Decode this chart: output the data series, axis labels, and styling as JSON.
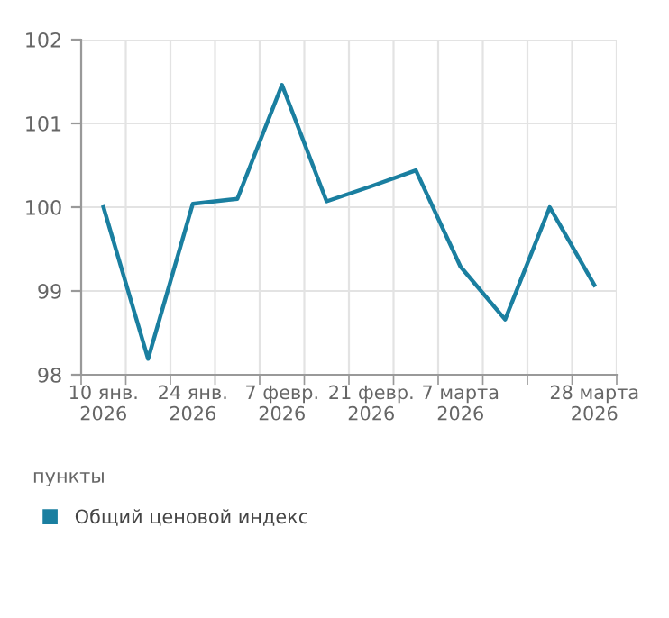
{
  "chart_data": {
    "type": "line",
    "categories": [
      "10 янв.\n2026",
      null,
      "24 янв.\n2026",
      null,
      "7 февр.\n2026",
      null,
      "21 февр.\n2026",
      null,
      "7 марта\n2026",
      null,
      null,
      "28 марта\n2026"
    ],
    "series": [
      {
        "name": "Общий ценовой индекс",
        "color": "#1a7fa0",
        "values": [
          100.0,
          98.19,
          100.04,
          100.1,
          101.46,
          100.07,
          100.25,
          100.44,
          99.29,
          98.66,
          100.0,
          99.07
        ]
      }
    ],
    "ylim": [
      98,
      102
    ],
    "yticks": [
      98,
      99,
      100,
      101,
      102
    ],
    "ylabel": "пункты",
    "grid": true,
    "legend": "bottom",
    "marker": "none",
    "line_style": "solid"
  }
}
